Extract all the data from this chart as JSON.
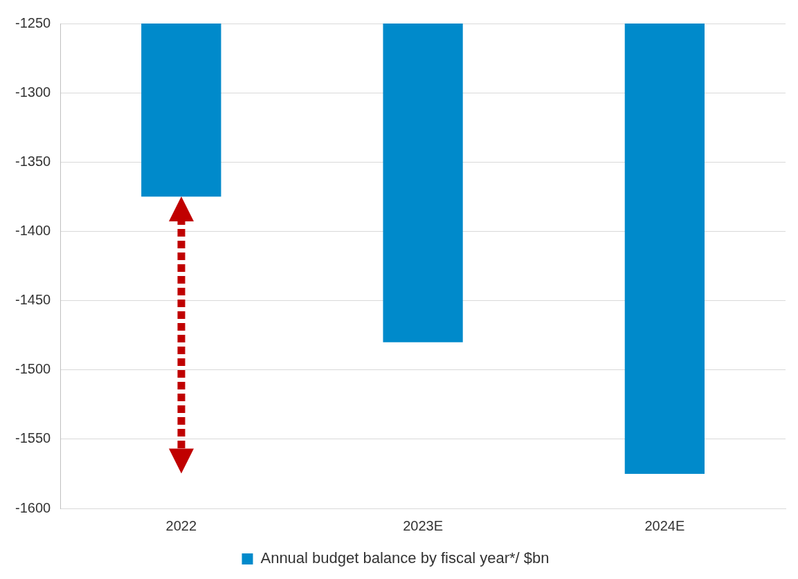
{
  "chart_data": {
    "type": "bar",
    "categories": [
      "2022",
      "2023E",
      "2024E"
    ],
    "series": [
      {
        "name": "Annual budget balance by fiscal year*/ $bn",
        "color": "#008acb",
        "values": [
          -1375,
          -1480,
          -1575
        ]
      }
    ],
    "ylim": [
      -1600,
      -1250
    ],
    "yticks": [
      -1600,
      -1550,
      -1500,
      -1450,
      -1400,
      -1350,
      -1300,
      -1250
    ],
    "grid": "y",
    "legend": "bottom"
  }
}
